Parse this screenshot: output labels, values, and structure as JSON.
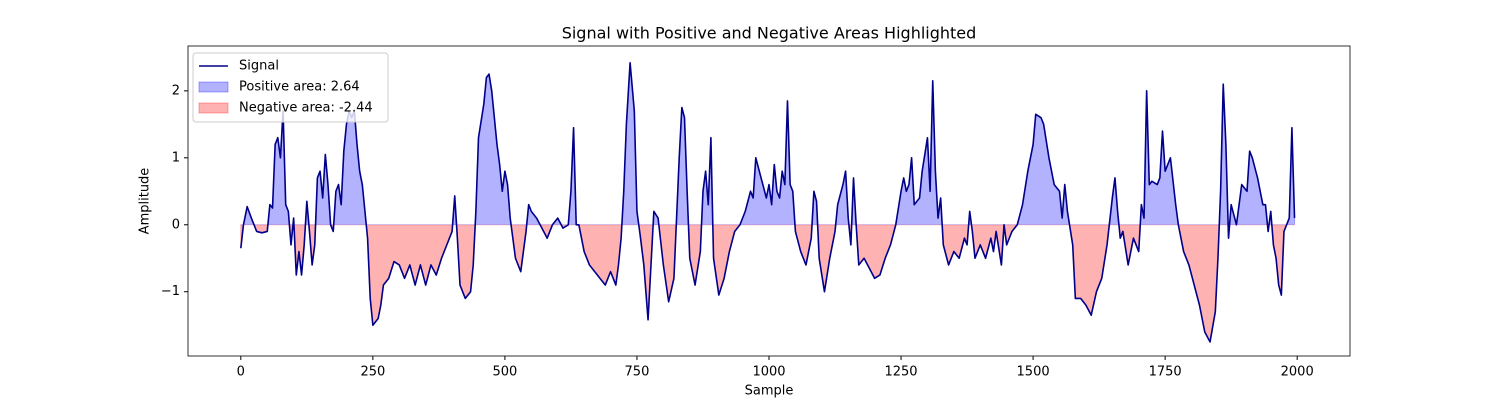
{
  "chart_data": {
    "type": "line",
    "title": "Signal with Positive and Negative Areas Highlighted",
    "x_label": "Sample",
    "y_label": "Amplitude",
    "xlim": [
      -100,
      2100
    ],
    "ylim": [
      -1.96,
      2.67
    ],
    "xticks": [
      0,
      250,
      500,
      750,
      1000,
      1250,
      1500,
      1750,
      2000
    ],
    "yticks": [
      {
        "value": -1,
        "label": "−1"
      },
      0,
      1,
      2
    ],
    "legend": "upper left",
    "x": [
      0,
      5,
      12,
      20,
      30,
      40,
      50,
      55,
      60,
      65,
      70,
      75,
      80,
      85,
      90,
      95,
      100,
      105,
      110,
      115,
      120,
      125,
      130,
      135,
      140,
      145,
      150,
      155,
      160,
      165,
      170,
      175,
      180,
      185,
      190,
      195,
      200,
      205,
      210,
      215,
      220,
      225,
      230,
      240,
      245,
      250,
      260,
      265,
      270,
      280,
      290,
      300,
      310,
      320,
      330,
      340,
      350,
      360,
      370,
      380,
      390,
      400,
      405,
      410,
      415,
      425,
      435,
      440,
      445,
      450,
      460,
      465,
      470,
      475,
      480,
      485,
      490,
      495,
      500,
      505,
      510,
      520,
      530,
      540,
      545,
      550,
      560,
      570,
      580,
      590,
      600,
      610,
      620,
      625,
      630,
      635,
      640,
      650,
      660,
      670,
      680,
      690,
      700,
      710,
      715,
      720,
      725,
      730,
      737,
      745,
      750,
      756,
      763,
      771,
      782,
      790,
      800,
      810,
      820,
      830,
      835,
      840,
      845,
      850,
      860,
      870,
      875,
      880,
      885,
      890,
      895,
      905,
      915,
      925,
      935,
      945,
      955,
      965,
      970,
      975,
      985,
      995,
      1000,
      1005,
      1010,
      1015,
      1020,
      1025,
      1030,
      1035,
      1040,
      1045,
      1050,
      1060,
      1070,
      1080,
      1085,
      1090,
      1095,
      1105,
      1115,
      1125,
      1130,
      1140,
      1145,
      1150,
      1155,
      1160,
      1165,
      1170,
      1180,
      1190,
      1200,
      1210,
      1220,
      1230,
      1240,
      1250,
      1255,
      1260,
      1265,
      1270,
      1275,
      1285,
      1290,
      1300,
      1305,
      1310,
      1315,
      1320,
      1325,
      1330,
      1340,
      1350,
      1360,
      1370,
      1375,
      1380,
      1385,
      1390,
      1400,
      1410,
      1420,
      1425,
      1430,
      1440,
      1445,
      1450,
      1460,
      1470,
      1480,
      1490,
      1500,
      1505,
      1515,
      1520,
      1530,
      1540,
      1550,
      1555,
      1560,
      1565,
      1575,
      1580,
      1590,
      1600,
      1610,
      1620,
      1630,
      1640,
      1650,
      1655,
      1660,
      1665,
      1670,
      1680,
      1690,
      1700,
      1705,
      1710,
      1715,
      1720,
      1725,
      1735,
      1740,
      1745,
      1750,
      1760,
      1770,
      1775,
      1785,
      1795,
      1805,
      1815,
      1825,
      1835,
      1845,
      1850,
      1855,
      1860,
      1865,
      1870,
      1875,
      1885,
      1890,
      1895,
      1905,
      1910,
      1915,
      1925,
      1935,
      1940,
      1945,
      1950,
      1955,
      1960,
      1965,
      1970,
      1975,
      1985,
      1990,
      1995
    ],
    "series": [
      {
        "name": "Signal",
        "color": "#00008b",
        "values": [
          -0.35,
          0.0,
          0.27,
          0.1,
          -0.1,
          -0.12,
          -0.1,
          0.3,
          0.25,
          1.2,
          1.3,
          1.0,
          1.7,
          0.3,
          0.2,
          -0.3,
          0.1,
          -0.75,
          -0.4,
          -0.75,
          -0.3,
          0.35,
          -0.1,
          -0.6,
          -0.3,
          0.7,
          0.8,
          0.4,
          1.05,
          0.6,
          0.0,
          -0.1,
          0.5,
          0.6,
          0.3,
          1.1,
          1.5,
          1.7,
          1.6,
          1.7,
          1.2,
          0.8,
          0.6,
          -0.2,
          -1.1,
          -1.5,
          -1.4,
          -1.2,
          -0.9,
          -0.8,
          -0.55,
          -0.6,
          -0.8,
          -0.6,
          -0.9,
          -0.6,
          -0.9,
          -0.6,
          -0.75,
          -0.5,
          -0.3,
          -0.1,
          0.43,
          -0.2,
          -0.9,
          -1.1,
          -1.0,
          -0.6,
          0.2,
          1.3,
          1.8,
          2.2,
          2.25,
          2.0,
          1.6,
          1.2,
          0.9,
          0.5,
          0.8,
          0.6,
          0.1,
          -0.5,
          -0.7,
          -0.1,
          0.3,
          0.2,
          0.1,
          -0.05,
          -0.2,
          0.0,
          0.1,
          -0.05,
          0.0,
          0.5,
          1.45,
          0.0,
          0.0,
          -0.4,
          -0.6,
          -0.7,
          -0.8,
          -0.9,
          -0.7,
          -0.9,
          -0.6,
          -0.2,
          0.5,
          1.5,
          2.42,
          1.7,
          0.2,
          -0.15,
          -0.6,
          -1.42,
          0.2,
          0.1,
          -0.6,
          -1.15,
          -0.8,
          1.0,
          1.75,
          1.6,
          0.5,
          -0.5,
          -0.9,
          -0.4,
          0.5,
          0.8,
          0.3,
          1.3,
          -0.5,
          -1.05,
          -0.8,
          -0.4,
          -0.1,
          0.0,
          0.2,
          0.5,
          0.4,
          1.0,
          0.7,
          0.4,
          0.6,
          0.3,
          0.9,
          0.5,
          0.4,
          0.8,
          0.6,
          1.85,
          0.6,
          0.5,
          -0.1,
          -0.4,
          -0.6,
          -0.2,
          0.5,
          0.35,
          -0.5,
          -1.0,
          -0.5,
          -0.1,
          0.3,
          0.6,
          0.8,
          0.1,
          -0.3,
          0.7,
          0.0,
          -0.6,
          -0.5,
          -0.65,
          -0.8,
          -0.75,
          -0.5,
          -0.3,
          0.0,
          0.5,
          0.7,
          0.5,
          0.6,
          1.0,
          0.3,
          0.4,
          0.8,
          1.3,
          0.5,
          2.15,
          0.8,
          0.1,
          0.4,
          -0.3,
          -0.6,
          -0.4,
          -0.5,
          -0.2,
          -0.3,
          0.2,
          -0.1,
          -0.5,
          -0.3,
          -0.5,
          -0.2,
          -0.4,
          -0.1,
          -0.6,
          0.0,
          -0.3,
          -0.1,
          0.0,
          0.3,
          0.8,
          1.2,
          1.65,
          1.6,
          1.5,
          1.0,
          0.6,
          0.5,
          0.1,
          0.6,
          0.2,
          -0.3,
          -1.1,
          -1.1,
          -1.2,
          -1.35,
          -1.0,
          -0.8,
          -0.3,
          0.4,
          0.7,
          0.2,
          -0.2,
          -0.1,
          -0.6,
          -0.2,
          -0.4,
          0.3,
          0.1,
          2.0,
          0.6,
          0.65,
          0.6,
          0.7,
          1.4,
          0.8,
          1.0,
          0.3,
          0.0,
          -0.4,
          -0.6,
          -0.9,
          -1.2,
          -1.6,
          -1.75,
          -1.3,
          -0.5,
          0.5,
          2.1,
          1.2,
          -0.2,
          0.3,
          0.0,
          0.3,
          0.6,
          0.5,
          1.1,
          1.0,
          0.7,
          0.3,
          0.3,
          -0.1,
          0.2,
          -0.3,
          -0.5,
          -0.9,
          -1.05,
          -0.1,
          0.1,
          1.45,
          0.1
        ]
      }
    ],
    "fills": [
      {
        "name": "Positive area: 2.64",
        "color": "#0000ff",
        "where": "above"
      },
      {
        "name": "Negative area: -2.44",
        "color": "#ff0000",
        "where": "below"
      }
    ]
  }
}
